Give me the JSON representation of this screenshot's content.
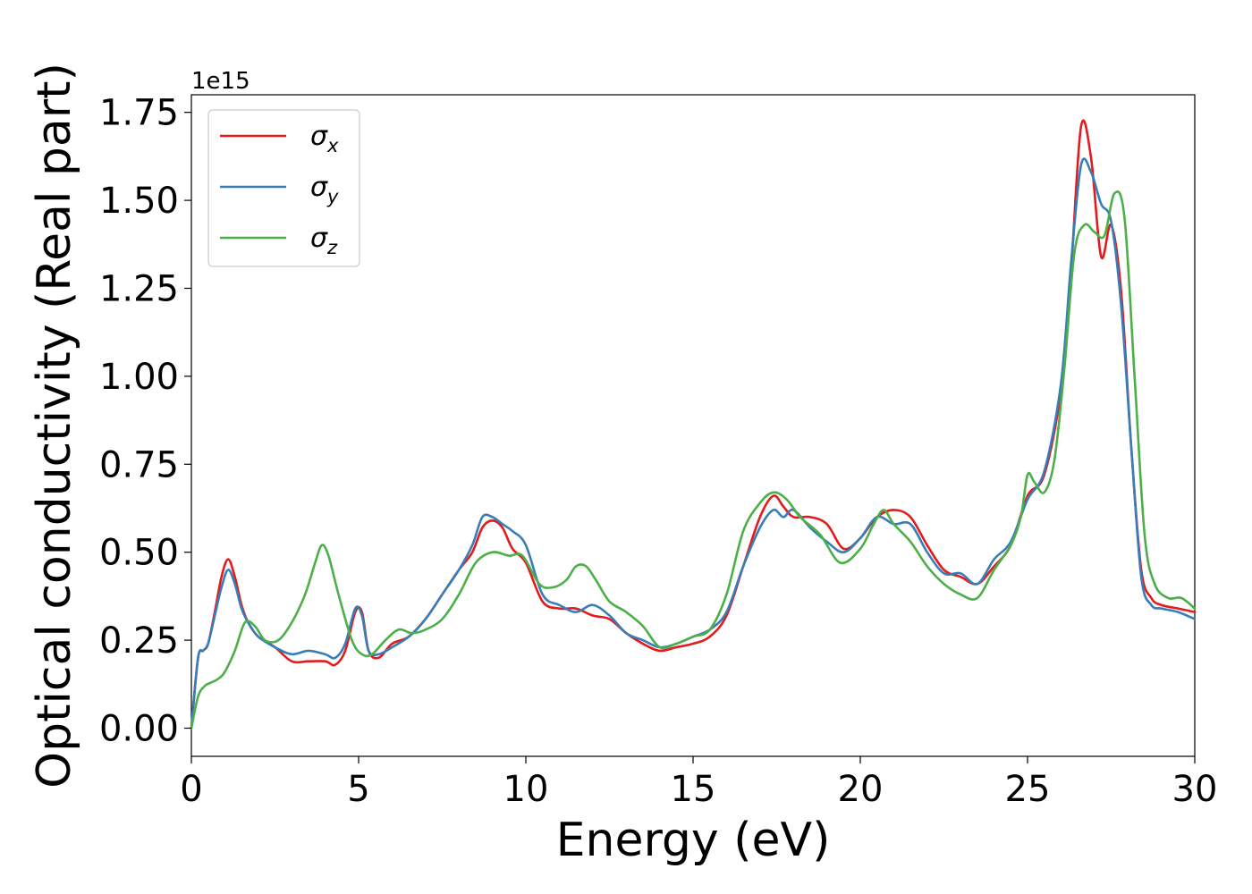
{
  "chart_data": {
    "type": "line",
    "xlabel": "Energy (eV)",
    "ylabel": "Optical conductivity (Real part)",
    "y_offset_label": "1e15",
    "xlim": [
      0,
      30
    ],
    "ylim": [
      -0.08,
      1.8
    ],
    "x_ticks": [
      0,
      5,
      10,
      15,
      20,
      25,
      30
    ],
    "x_tick_labels": [
      "0",
      "5",
      "10",
      "15",
      "20",
      "25",
      "30"
    ],
    "y_ticks": [
      0,
      0.25,
      0.5,
      0.75,
      1.0,
      1.25,
      1.5,
      1.75
    ],
    "y_tick_labels": [
      "0.00",
      "0.25",
      "0.50",
      "0.75",
      "1.00",
      "1.25",
      "1.50",
      "1.75"
    ],
    "grid": false,
    "legend_position": "top-left",
    "series": [
      {
        "name": "σx",
        "symbol": "σ",
        "subscript": "x",
        "color": "#e41a1c",
        "x": [
          0,
          0.2,
          0.35,
          0.5,
          0.7,
          0.9,
          1.1,
          1.3,
          1.5,
          1.7,
          2.0,
          2.5,
          3.0,
          3.5,
          4.0,
          4.3,
          4.6,
          4.9,
          5.1,
          5.3,
          5.6,
          6.0,
          6.5,
          7.0,
          7.5,
          8.0,
          8.4,
          8.7,
          9.0,
          9.3,
          9.6,
          10.0,
          10.5,
          11.0,
          11.5,
          12.0,
          12.5,
          13.0,
          13.5,
          14.0,
          14.5,
          15.0,
          15.5,
          16.0,
          16.5,
          17.0,
          17.4,
          17.7,
          18.0,
          18.5,
          19.0,
          19.5,
          20.0,
          20.5,
          21.0,
          21.5,
          22.0,
          22.5,
          23.0,
          23.5,
          24.0,
          24.5,
          25.0,
          25.5,
          26.0,
          26.3,
          26.6,
          26.9,
          27.2,
          27.5,
          27.8,
          28.1,
          28.4,
          28.7,
          29.0,
          29.5,
          30.0
        ],
        "y": [
          0.0,
          0.2,
          0.22,
          0.24,
          0.33,
          0.43,
          0.48,
          0.43,
          0.35,
          0.3,
          0.26,
          0.23,
          0.19,
          0.19,
          0.19,
          0.18,
          0.22,
          0.33,
          0.33,
          0.22,
          0.2,
          0.24,
          0.26,
          0.31,
          0.38,
          0.45,
          0.5,
          0.57,
          0.59,
          0.57,
          0.51,
          0.47,
          0.36,
          0.34,
          0.34,
          0.32,
          0.31,
          0.27,
          0.24,
          0.22,
          0.23,
          0.24,
          0.26,
          0.32,
          0.46,
          0.6,
          0.66,
          0.63,
          0.6,
          0.6,
          0.58,
          0.51,
          0.54,
          0.6,
          0.62,
          0.6,
          0.52,
          0.45,
          0.43,
          0.41,
          0.46,
          0.52,
          0.66,
          0.72,
          0.96,
          1.3,
          1.71,
          1.62,
          1.34,
          1.43,
          1.24,
          0.8,
          0.45,
          0.37,
          0.35,
          0.34,
          0.33
        ]
      },
      {
        "name": "σy",
        "symbol": "σ",
        "subscript": "y",
        "color": "#377eb8",
        "x": [
          0,
          0.2,
          0.35,
          0.5,
          0.7,
          0.9,
          1.1,
          1.3,
          1.5,
          1.7,
          2.0,
          2.5,
          3.0,
          3.5,
          4.0,
          4.3,
          4.6,
          4.9,
          5.1,
          5.3,
          5.6,
          6.0,
          6.5,
          7.0,
          7.5,
          8.0,
          8.4,
          8.7,
          9.0,
          9.3,
          9.6,
          10.0,
          10.5,
          11.0,
          11.5,
          12.0,
          12.5,
          13.0,
          13.5,
          14.0,
          14.5,
          15.0,
          15.5,
          16.0,
          16.5,
          17.0,
          17.4,
          17.7,
          18.0,
          18.5,
          19.0,
          19.5,
          20.0,
          20.5,
          21.0,
          21.5,
          22.0,
          22.5,
          23.0,
          23.5,
          24.0,
          24.5,
          25.0,
          25.5,
          26.0,
          26.3,
          26.6,
          26.9,
          27.2,
          27.5,
          27.8,
          28.1,
          28.4,
          28.7,
          29.0,
          29.5,
          30.0
        ],
        "y": [
          0.0,
          0.2,
          0.22,
          0.24,
          0.32,
          0.4,
          0.45,
          0.41,
          0.34,
          0.3,
          0.26,
          0.23,
          0.21,
          0.22,
          0.21,
          0.2,
          0.24,
          0.34,
          0.32,
          0.22,
          0.21,
          0.23,
          0.26,
          0.31,
          0.38,
          0.45,
          0.52,
          0.6,
          0.6,
          0.58,
          0.56,
          0.52,
          0.38,
          0.35,
          0.33,
          0.35,
          0.32,
          0.27,
          0.25,
          0.23,
          0.24,
          0.26,
          0.28,
          0.33,
          0.46,
          0.57,
          0.62,
          0.6,
          0.62,
          0.57,
          0.53,
          0.5,
          0.54,
          0.6,
          0.58,
          0.58,
          0.5,
          0.44,
          0.44,
          0.41,
          0.48,
          0.53,
          0.65,
          0.73,
          0.98,
          1.32,
          1.6,
          1.58,
          1.49,
          1.44,
          1.2,
          0.8,
          0.43,
          0.35,
          0.34,
          0.33,
          0.31
        ]
      },
      {
        "name": "σz",
        "symbol": "σ",
        "subscript": "z",
        "color": "#4daf4a",
        "x": [
          0,
          0.2,
          0.4,
          0.6,
          0.8,
          1.0,
          1.3,
          1.6,
          1.9,
          2.2,
          2.6,
          3.0,
          3.4,
          3.7,
          3.9,
          4.1,
          4.4,
          4.8,
          5.1,
          5.4,
          5.8,
          6.2,
          6.6,
          7.0,
          7.5,
          8.0,
          8.5,
          9.0,
          9.5,
          9.9,
          10.4,
          10.8,
          11.2,
          11.5,
          11.8,
          12.1,
          12.5,
          13.0,
          13.5,
          14.0,
          14.5,
          15.0,
          15.5,
          16.0,
          16.5,
          17.0,
          17.4,
          17.8,
          18.2,
          18.8,
          19.4,
          20.0,
          20.4,
          20.7,
          21.0,
          21.5,
          22.0,
          22.5,
          23.0,
          23.5,
          24.0,
          24.5,
          24.8,
          25.0,
          25.2,
          25.5,
          25.8,
          26.1,
          26.4,
          26.7,
          27.0,
          27.3,
          27.6,
          27.9,
          28.2,
          28.5,
          28.8,
          29.2,
          29.6,
          30.0
        ],
        "y": [
          0.0,
          0.09,
          0.12,
          0.13,
          0.14,
          0.16,
          0.22,
          0.3,
          0.29,
          0.25,
          0.25,
          0.3,
          0.38,
          0.47,
          0.52,
          0.49,
          0.38,
          0.25,
          0.21,
          0.21,
          0.25,
          0.28,
          0.27,
          0.28,
          0.31,
          0.38,
          0.47,
          0.5,
          0.49,
          0.49,
          0.41,
          0.4,
          0.42,
          0.46,
          0.46,
          0.42,
          0.36,
          0.33,
          0.29,
          0.23,
          0.24,
          0.26,
          0.28,
          0.38,
          0.56,
          0.64,
          0.67,
          0.65,
          0.6,
          0.55,
          0.47,
          0.51,
          0.58,
          0.62,
          0.58,
          0.53,
          0.46,
          0.41,
          0.38,
          0.37,
          0.45,
          0.52,
          0.6,
          0.72,
          0.7,
          0.67,
          0.76,
          1.02,
          1.35,
          1.43,
          1.41,
          1.4,
          1.52,
          1.45,
          1.0,
          0.55,
          0.41,
          0.37,
          0.37,
          0.34
        ]
      }
    ]
  }
}
